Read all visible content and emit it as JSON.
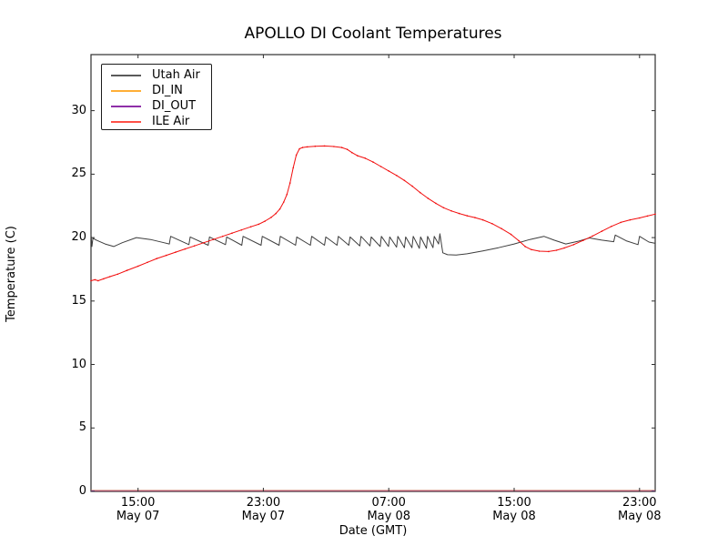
{
  "title": "APOLLO DI Coolant Temperatures",
  "axes": {
    "xlabel": "Date (GMT)",
    "ylabel": "Temperature (C)",
    "ylim": [
      0,
      34.42
    ],
    "xlim_hours": [
      0,
      36
    ],
    "y_ticks": [
      0,
      5,
      10,
      15,
      20,
      25,
      30
    ],
    "x_ticks": [
      {
        "hour": 3,
        "time": "15:00",
        "date": "May 07"
      },
      {
        "hour": 11,
        "time": "23:00",
        "date": "May 07"
      },
      {
        "hour": 19,
        "time": "07:00",
        "date": "May 08"
      },
      {
        "hour": 27,
        "time": "15:00",
        "date": "May 08"
      },
      {
        "hour": 35,
        "time": "23:00",
        "date": "May 08"
      }
    ],
    "grid": false
  },
  "legend": {
    "position": "upper-left",
    "entries": [
      {
        "label": "Utah Air",
        "color": "#5a5a5a"
      },
      {
        "label": "DI_IN",
        "color": "#ffaf37"
      },
      {
        "label": "DI_OUT",
        "color": "#8e2fa8"
      },
      {
        "label": "ILE Air",
        "color": "#ff5147"
      }
    ]
  },
  "chart_data": {
    "type": "line",
    "x_unit": "hours since May 07 12:00 GMT",
    "series": [
      {
        "name": "Utah Air",
        "color": "#3d3d3d",
        "width": 1,
        "points": [
          [
            0,
            20.25
          ],
          [
            0.06,
            19.3
          ],
          [
            0.12,
            19.95
          ],
          [
            0.35,
            19.8
          ],
          [
            0.9,
            19.5
          ],
          [
            1.45,
            19.3
          ],
          [
            2.0,
            19.6
          ],
          [
            2.9,
            20.0
          ],
          [
            3.8,
            19.85
          ],
          [
            4.65,
            19.6
          ],
          [
            5.0,
            19.5
          ],
          [
            5.08,
            20.1
          ],
          [
            6.25,
            19.45
          ],
          [
            6.33,
            20.05
          ],
          [
            7.48,
            19.4
          ],
          [
            7.56,
            20.05
          ],
          [
            8.58,
            19.45
          ],
          [
            8.66,
            20.05
          ],
          [
            9.62,
            19.4
          ],
          [
            9.7,
            20.1
          ],
          [
            10.85,
            19.4
          ],
          [
            10.93,
            20.1
          ],
          [
            12.0,
            19.4
          ],
          [
            12.08,
            20.1
          ],
          [
            13.05,
            19.4
          ],
          [
            13.13,
            20.05
          ],
          [
            14.0,
            19.4
          ],
          [
            14.08,
            20.1
          ],
          [
            14.9,
            19.4
          ],
          [
            14.98,
            20.05
          ],
          [
            15.7,
            19.4
          ],
          [
            15.78,
            20.1
          ],
          [
            16.45,
            19.4
          ],
          [
            16.53,
            20.05
          ],
          [
            17.15,
            19.35
          ],
          [
            17.23,
            20.1
          ],
          [
            17.8,
            19.35
          ],
          [
            17.88,
            20.05
          ],
          [
            18.45,
            19.3
          ],
          [
            18.53,
            20.1
          ],
          [
            18.98,
            19.3
          ],
          [
            19.06,
            20.05
          ],
          [
            19.5,
            19.25
          ],
          [
            19.58,
            20.1
          ],
          [
            20.0,
            19.2
          ],
          [
            20.08,
            20.05
          ],
          [
            20.48,
            19.2
          ],
          [
            20.56,
            20.1
          ],
          [
            20.95,
            19.15
          ],
          [
            21.03,
            20.05
          ],
          [
            21.4,
            19.15
          ],
          [
            21.48,
            20.1
          ],
          [
            21.82,
            19.2
          ],
          [
            21.9,
            20.1
          ],
          [
            22.18,
            19.5
          ],
          [
            22.26,
            20.3
          ],
          [
            22.45,
            18.8
          ],
          [
            22.75,
            18.65
          ],
          [
            23.3,
            18.62
          ],
          [
            24.0,
            18.72
          ],
          [
            25.0,
            18.95
          ],
          [
            26.0,
            19.2
          ],
          [
            27.0,
            19.5
          ],
          [
            28.0,
            19.85
          ],
          [
            28.9,
            20.1
          ],
          [
            29.55,
            19.8
          ],
          [
            30.3,
            19.5
          ],
          [
            31.05,
            19.7
          ],
          [
            31.8,
            19.97
          ],
          [
            32.6,
            19.8
          ],
          [
            33.35,
            19.68
          ],
          [
            33.45,
            20.2
          ],
          [
            34.15,
            19.75
          ],
          [
            34.9,
            19.45
          ],
          [
            35.0,
            20.1
          ],
          [
            35.6,
            19.65
          ],
          [
            36,
            19.55
          ]
        ]
      },
      {
        "name": "DI_IN",
        "color": "#ffa500",
        "width": 1.4,
        "points": [
          [
            0,
            0
          ],
          [
            36,
            0
          ]
        ]
      },
      {
        "name": "DI_OUT",
        "color": "#8e2fa8",
        "width": 0.9,
        "points": [
          [
            0,
            0
          ],
          [
            36,
            0
          ]
        ]
      },
      {
        "name": "ILE Air",
        "color": "#f20d0d",
        "width": 1,
        "markers": true,
        "points": [
          [
            0,
            16.6
          ],
          [
            0.25,
            16.68
          ],
          [
            0.45,
            16.6
          ],
          [
            0.8,
            16.75
          ],
          [
            1.2,
            16.92
          ],
          [
            1.7,
            17.12
          ],
          [
            2.3,
            17.42
          ],
          [
            3.0,
            17.75
          ],
          [
            3.6,
            18.05
          ],
          [
            4.2,
            18.35
          ],
          [
            4.8,
            18.6
          ],
          [
            5.4,
            18.85
          ],
          [
            6.0,
            19.1
          ],
          [
            6.6,
            19.35
          ],
          [
            7.2,
            19.6
          ],
          [
            7.8,
            19.85
          ],
          [
            8.4,
            20.1
          ],
          [
            9.0,
            20.35
          ],
          [
            9.6,
            20.6
          ],
          [
            10.2,
            20.85
          ],
          [
            10.7,
            21.05
          ],
          [
            11.1,
            21.3
          ],
          [
            11.5,
            21.6
          ],
          [
            11.8,
            21.9
          ],
          [
            12.05,
            22.25
          ],
          [
            12.3,
            22.8
          ],
          [
            12.5,
            23.4
          ],
          [
            12.7,
            24.3
          ],
          [
            12.9,
            25.5
          ],
          [
            13.1,
            26.5
          ],
          [
            13.3,
            27.0
          ],
          [
            13.5,
            27.1
          ],
          [
            13.8,
            27.15
          ],
          [
            14.3,
            27.2
          ],
          [
            14.9,
            27.22
          ],
          [
            15.5,
            27.18
          ],
          [
            16.0,
            27.1
          ],
          [
            16.35,
            26.95
          ],
          [
            16.65,
            26.7
          ],
          [
            17.0,
            26.45
          ],
          [
            17.5,
            26.25
          ],
          [
            18.0,
            25.95
          ],
          [
            18.5,
            25.6
          ],
          [
            19.0,
            25.25
          ],
          [
            19.5,
            24.9
          ],
          [
            20.0,
            24.5
          ],
          [
            20.5,
            24.05
          ],
          [
            21.0,
            23.55
          ],
          [
            21.5,
            23.1
          ],
          [
            22.0,
            22.7
          ],
          [
            22.5,
            22.35
          ],
          [
            23.0,
            22.1
          ],
          [
            23.5,
            21.9
          ],
          [
            24.0,
            21.72
          ],
          [
            24.5,
            21.58
          ],
          [
            25.0,
            21.4
          ],
          [
            25.6,
            21.1
          ],
          [
            26.2,
            20.7
          ],
          [
            26.8,
            20.25
          ],
          [
            27.3,
            19.75
          ],
          [
            27.7,
            19.3
          ],
          [
            28.1,
            19.05
          ],
          [
            28.6,
            18.93
          ],
          [
            29.2,
            18.9
          ],
          [
            29.7,
            19.0
          ],
          [
            30.2,
            19.18
          ],
          [
            30.8,
            19.45
          ],
          [
            31.4,
            19.78
          ],
          [
            32.0,
            20.12
          ],
          [
            32.6,
            20.5
          ],
          [
            33.2,
            20.88
          ],
          [
            33.8,
            21.2
          ],
          [
            34.4,
            21.4
          ],
          [
            35.0,
            21.55
          ],
          [
            35.5,
            21.7
          ],
          [
            36,
            21.85
          ]
        ]
      }
    ]
  }
}
